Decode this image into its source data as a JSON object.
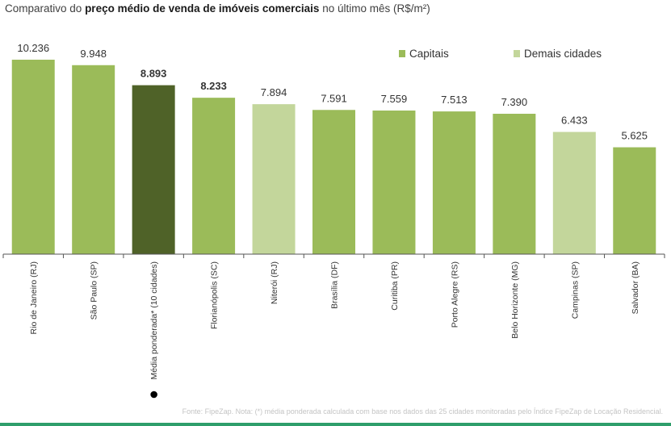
{
  "title": {
    "prefix": "Comparativo do ",
    "bold": "preço médio de venda de imóveis comerciais",
    "suffix": " no último mês (R$/m²)"
  },
  "source_note": "Fonte: FipeZap. Nota: (*) média ponderada calculada com base nos dados das 25 cidades monitoradas pelo Índice FipeZap de Locação Residencial.",
  "colors": {
    "capitais": "#9bbb59",
    "demais": "#c3d69b",
    "media": "#4f6228",
    "axis": "#555555",
    "label": "#333333",
    "marker": "#000000"
  },
  "chart_data": {
    "type": "bar",
    "ylim": [
      0,
      11000
    ],
    "legend_position": "top-right",
    "legend": [
      {
        "label": "Capitais",
        "color": "#9bbb59"
      },
      {
        "label": "Demais cidades",
        "color": "#c3d69b"
      }
    ],
    "categories": [
      "Rio de Janeiro (RJ)",
      "São Paulo (SP)",
      "Média ponderada* (10 cidades)",
      "Florianópolis (SC)",
      "Niterói (RJ)",
      "Brasília (DF)",
      "Curitiba (PR)",
      "Porto Alegre (RS)",
      "Belo Horizonte (MG)",
      "Campinas (SP)",
      "Salvador (BA)"
    ],
    "values": [
      10236,
      9948,
      8893,
      8233,
      7894,
      7591,
      7559,
      7513,
      7390,
      6433,
      5625
    ],
    "value_labels": [
      "10.236",
      "9.948",
      "8.893",
      "8.233",
      "7.894",
      "7.591",
      "7.559",
      "7.513",
      "7.390",
      "6.433",
      "5.625"
    ],
    "groups": [
      "capitais",
      "capitais",
      "media",
      "capitais",
      "demais",
      "capitais",
      "capitais",
      "capitais",
      "capitais",
      "demais",
      "capitais"
    ],
    "bold_labels": [
      false,
      false,
      true,
      true,
      false,
      false,
      false,
      false,
      false,
      false,
      false
    ],
    "marked_category": 2
  }
}
